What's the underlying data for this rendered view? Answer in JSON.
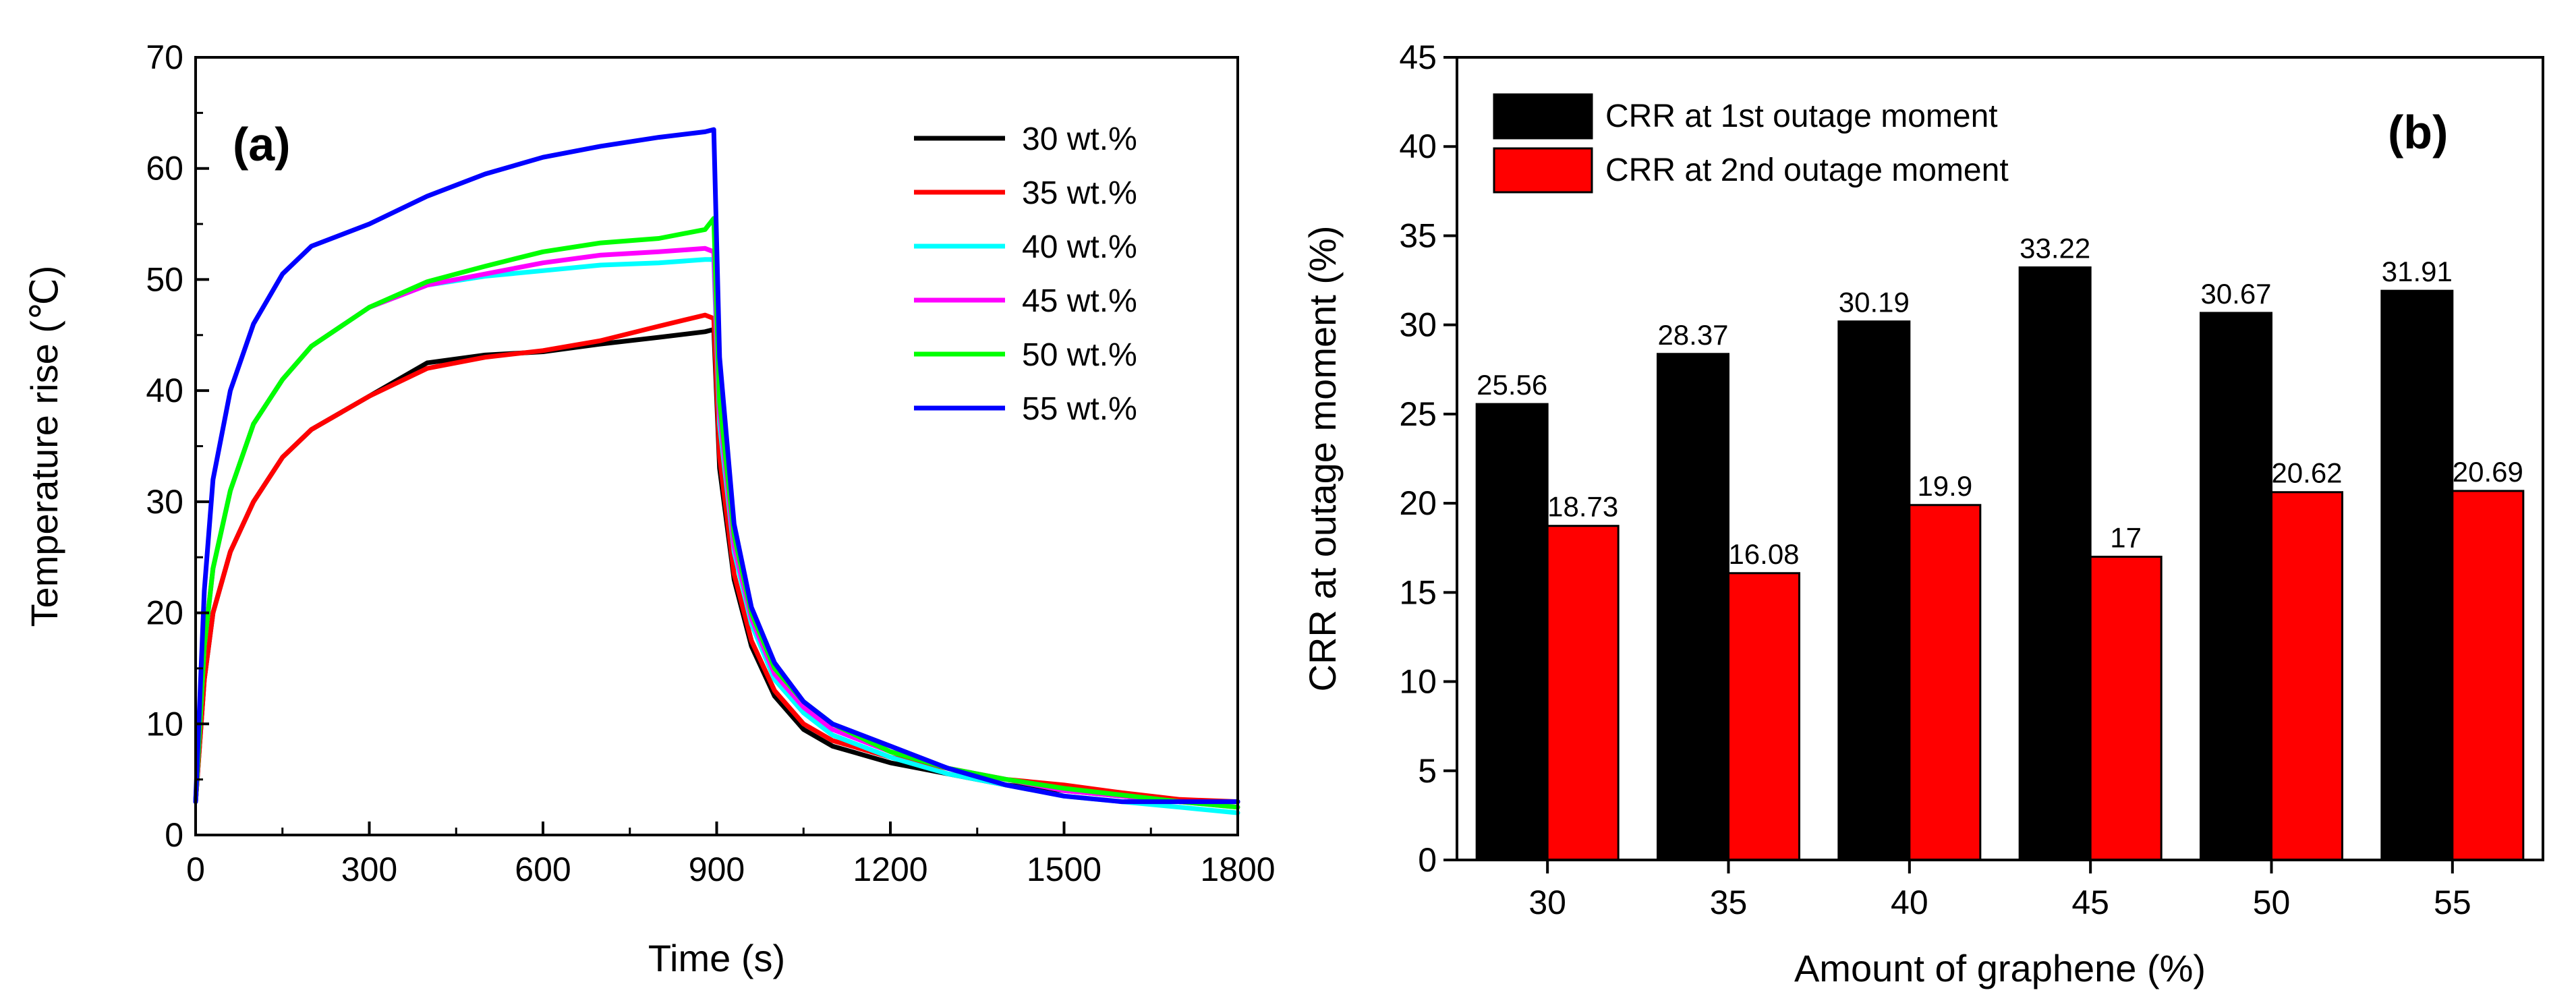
{
  "chart_data": [
    {
      "type": "line",
      "panel_label": "(a)",
      "xlabel": "Time (s)",
      "ylabel": "Temperature rise (℃)",
      "xlim": [
        0,
        1800
      ],
      "ylim": [
        0,
        70
      ],
      "xticks": [
        0,
        300,
        600,
        900,
        1200,
        1500,
        1800
      ],
      "xtick_labels": [
        "0",
        "300",
        "600",
        "900",
        "1200",
        "1500",
        "1800"
      ],
      "yticks": [
        0,
        10,
        20,
        30,
        40,
        50,
        60,
        70
      ],
      "ytick_labels": [
        "0",
        "10",
        "20",
        "30",
        "40",
        "50",
        "60",
        "70"
      ],
      "grid": false,
      "legend_position": "top-right",
      "x": [
        0,
        15,
        30,
        60,
        100,
        150,
        200,
        300,
        400,
        500,
        600,
        700,
        800,
        880,
        895,
        905,
        930,
        960,
        1000,
        1050,
        1100,
        1200,
        1300,
        1400,
        1500,
        1600,
        1700,
        1800
      ],
      "series": [
        {
          "name": "30 wt.%",
          "color": "#000000",
          "values": [
            3,
            14,
            20,
            25.5,
            30,
            34,
            36.5,
            39.5,
            42.5,
            43.2,
            43.5,
            44.2,
            44.8,
            45.3,
            45.5,
            33,
            23,
            17,
            12.5,
            9.5,
            8,
            6.5,
            5.5,
            4.5,
            4,
            3.5,
            3,
            3
          ]
        },
        {
          "name": "35 wt.%",
          "color": "#ff0000",
          "values": [
            3,
            14,
            20,
            25.5,
            30,
            34,
            36.5,
            39.5,
            42.0,
            43.0,
            43.6,
            44.5,
            45.8,
            46.8,
            46.5,
            34,
            23.5,
            17.5,
            13,
            10,
            8.5,
            7,
            6,
            5,
            4.5,
            3.8,
            3.2,
            3
          ]
        },
        {
          "name": "40 wt.%",
          "color": "#00ffff",
          "values": [
            3,
            17,
            24,
            31,
            37,
            41,
            44,
            47.5,
            49.5,
            50.3,
            50.8,
            51.3,
            51.5,
            51.8,
            51.8,
            37,
            25.5,
            19,
            14,
            11,
            9,
            7,
            5.5,
            4.5,
            3.5,
            3,
            2.5,
            2
          ]
        },
        {
          "name": "45 wt.%",
          "color": "#ff00ff",
          "values": [
            3,
            17,
            24,
            31,
            37,
            41,
            44,
            47.5,
            49.5,
            50.5,
            51.5,
            52.2,
            52.5,
            52.8,
            52.5,
            38,
            26,
            19.5,
            14.5,
            11.5,
            9.5,
            7.5,
            6,
            5,
            4,
            3.5,
            3,
            2.5
          ]
        },
        {
          "name": "50 wt.%",
          "color": "#00ff00",
          "values": [
            3,
            17,
            24,
            31,
            37,
            41,
            44,
            47.5,
            49.8,
            51.2,
            52.5,
            53.3,
            53.7,
            54.5,
            55.5,
            39,
            27,
            20,
            15,
            12,
            10,
            7.5,
            6,
            5,
            4.2,
            3.6,
            3,
            2.5
          ]
        },
        {
          "name": "55 wt.%",
          "color": "#0000ff",
          "values": [
            3,
            22,
            32,
            40,
            46,
            50.5,
            53,
            55,
            57.5,
            59.5,
            61,
            62,
            62.8,
            63.3,
            63.5,
            43,
            28,
            20.5,
            15.5,
            12,
            10,
            8,
            6,
            4.5,
            3.5,
            3,
            3,
            3
          ]
        }
      ]
    },
    {
      "type": "bar",
      "panel_label": "(b)",
      "xlabel": "Amount of graphene (%)",
      "ylabel": "CRR at outage moment (%)",
      "ylim": [
        0,
        45
      ],
      "yticks": [
        0,
        5,
        10,
        15,
        20,
        25,
        30,
        35,
        40,
        45
      ],
      "ytick_labels": [
        "0",
        "5",
        "10",
        "15",
        "20",
        "25",
        "30",
        "35",
        "40",
        "45"
      ],
      "categories": [
        "30",
        "35",
        "40",
        "45",
        "50",
        "55"
      ],
      "grid": false,
      "legend_position": "top-left",
      "series": [
        {
          "name": "CRR at 1st  outage moment",
          "color": "#000000",
          "values": [
            25.56,
            28.37,
            30.19,
            33.22,
            30.67,
            31.91
          ],
          "labels": [
            "25.56",
            "28.37",
            "30.19",
            "33.22",
            "30.67",
            "31.91"
          ]
        },
        {
          "name": "CRR at 2nd  outage moment",
          "color": "#ff0000",
          "values": [
            18.73,
            16.08,
            19.9,
            17,
            20.62,
            20.69
          ],
          "labels": [
            "18.73",
            "16.08",
            "19.9",
            "17",
            "20.62",
            "20.69"
          ]
        }
      ]
    }
  ]
}
